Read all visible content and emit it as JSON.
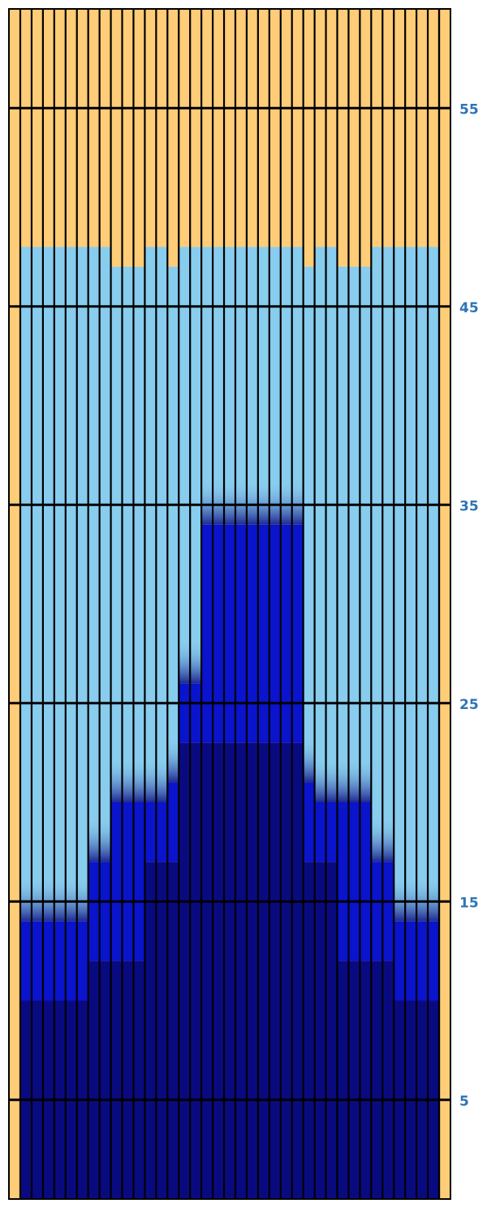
{
  "chart_data": {
    "type": "bar",
    "title": "",
    "xlabel": "",
    "ylabel": "",
    "ylim": [
      0,
      60
    ],
    "yticks": [
      5,
      15,
      25,
      35,
      45,
      55
    ],
    "grid": true,
    "colors": {
      "background": "#ffcc77",
      "series_0": "#0a0a80",
      "series_1": "#0a14cc",
      "series_2": "#88ccee",
      "gridline": "#000000",
      "tick_label": "#2e75b6"
    },
    "x_count": 37,
    "series": [
      {
        "values": [
          10,
          10,
          10,
          10,
          10,
          10,
          12,
          12,
          12,
          12,
          12,
          17,
          17,
          17,
          23,
          23,
          23,
          23,
          23,
          23,
          23,
          23,
          23,
          23,
          23,
          17,
          17,
          17,
          12,
          12,
          12,
          12,
          12,
          10,
          10,
          10,
          10
        ]
      },
      {
        "values": [
          4,
          4,
          4,
          4,
          4,
          4,
          5,
          5,
          8,
          8,
          8,
          3,
          3,
          4,
          3,
          3,
          11,
          11,
          11,
          11,
          11,
          11,
          11,
          11,
          11,
          4,
          3,
          3,
          8,
          8,
          8,
          5,
          5,
          4,
          4,
          4,
          4
        ]
      },
      {
        "values": [
          34,
          34,
          34,
          34,
          34,
          34,
          31,
          31,
          27,
          27,
          27,
          28,
          28,
          26,
          22,
          22,
          14,
          14,
          14,
          14,
          14,
          14,
          14,
          14,
          14,
          26,
          28,
          28,
          27,
          27,
          27,
          31,
          31,
          34,
          34,
          34,
          34
        ]
      }
    ]
  }
}
